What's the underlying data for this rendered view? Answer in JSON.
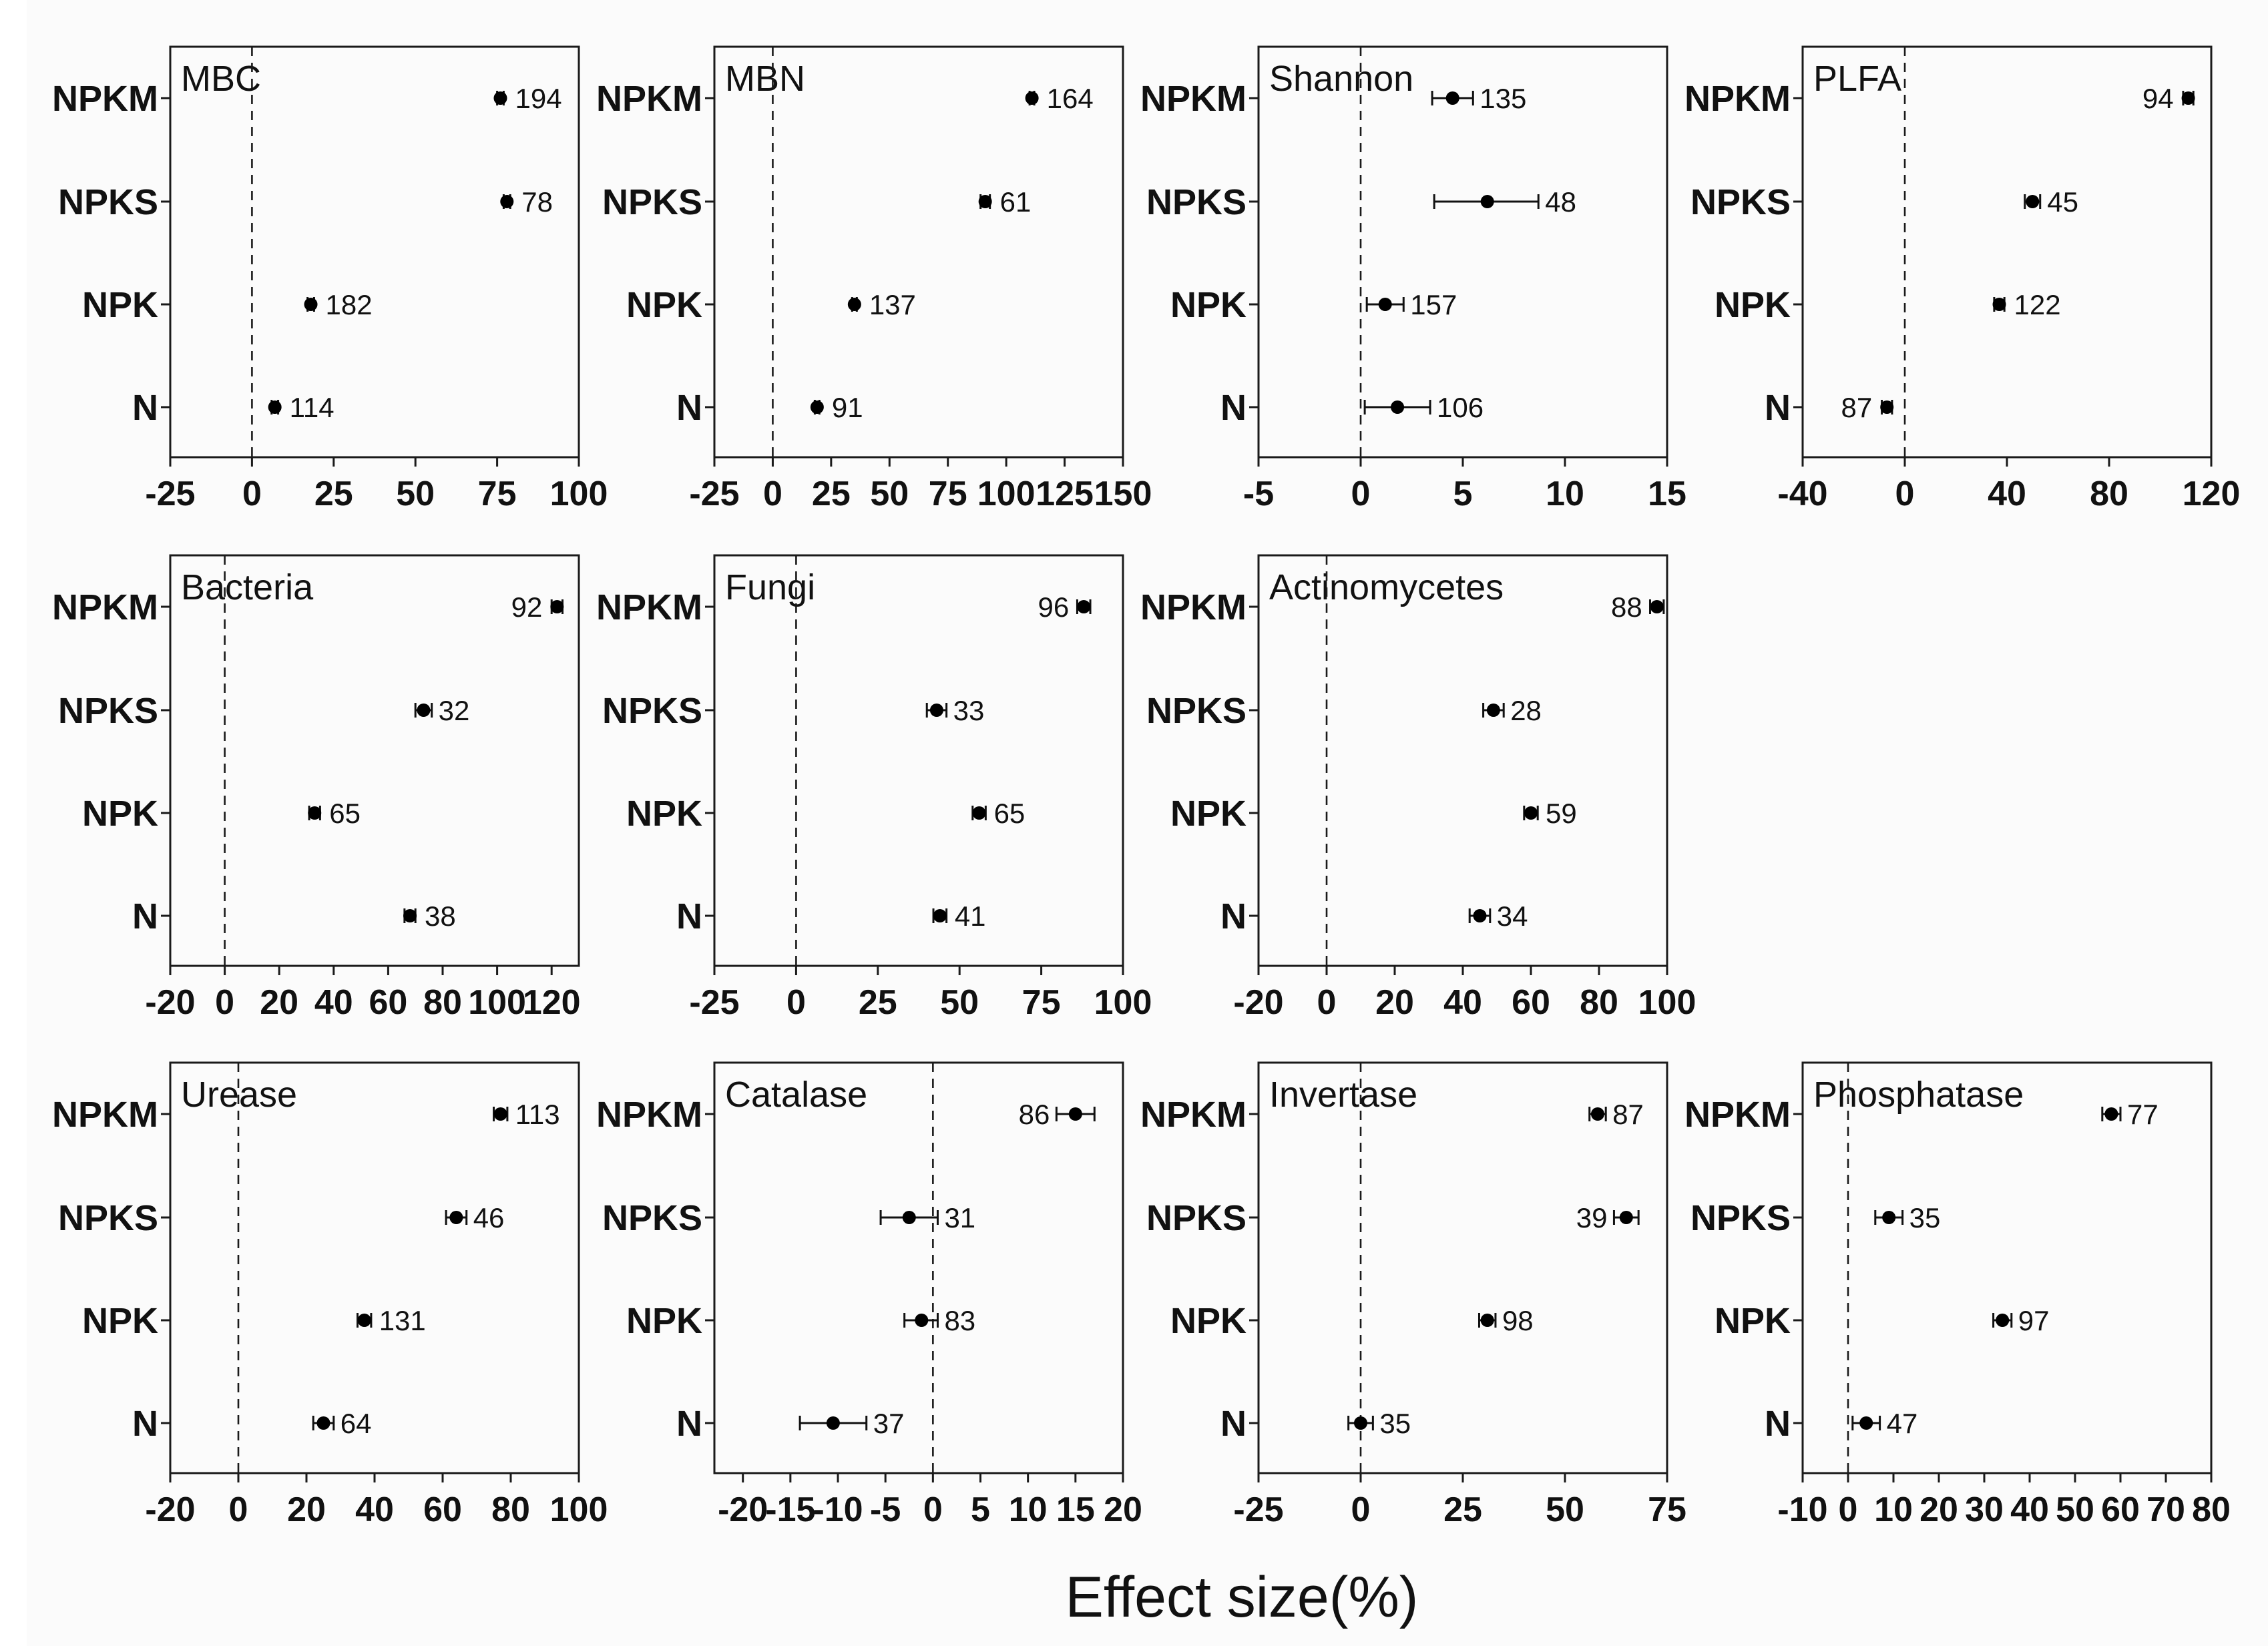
{
  "figure": {
    "xlabel": "Effect size(%)"
  },
  "chart_data": [
    {
      "type": "scatter",
      "title": "MBC",
      "categories": [
        "NPKM",
        "NPKS",
        "NPK",
        "N"
      ],
      "xlim": [
        -25,
        100
      ],
      "xticks": [
        -25,
        0,
        25,
        50,
        75,
        100
      ],
      "points": [
        {
          "category": "NPKM",
          "value": 76,
          "ci": [
            75,
            77
          ],
          "n": "194"
        },
        {
          "category": "NPKS",
          "value": 78,
          "ci": [
            77,
            79
          ],
          "n": "78"
        },
        {
          "category": "NPK",
          "value": 18,
          "ci": [
            17,
            19
          ],
          "n": "182"
        },
        {
          "category": "N",
          "value": 7,
          "ci": [
            6,
            8
          ],
          "n": "114"
        }
      ]
    },
    {
      "type": "scatter",
      "title": "MBN",
      "categories": [
        "NPKM",
        "NPKS",
        "NPK",
        "N"
      ],
      "xlim": [
        -25,
        150
      ],
      "xticks": [
        -25,
        0,
        25,
        50,
        75,
        100,
        125,
        150
      ],
      "points": [
        {
          "category": "NPKM",
          "value": 111,
          "ci": [
            110,
            112
          ],
          "n": "164"
        },
        {
          "category": "NPKS",
          "value": 91,
          "ci": [
            89,
            93
          ],
          "n": "61"
        },
        {
          "category": "NPK",
          "value": 35,
          "ci": [
            34,
            36
          ],
          "n": "137"
        },
        {
          "category": "N",
          "value": 19,
          "ci": [
            18,
            20
          ],
          "n": "91"
        }
      ]
    },
    {
      "type": "scatter",
      "title": "Shannon",
      "categories": [
        "NPKM",
        "NPKS",
        "NPK",
        "N"
      ],
      "xlim": [
        -5,
        15
      ],
      "xticks": [
        -5,
        0,
        5,
        10,
        15
      ],
      "points": [
        {
          "category": "NPKM",
          "value": 4.5,
          "ci": [
            3.5,
            5.5
          ],
          "n": "135"
        },
        {
          "category": "NPKS",
          "value": 6.2,
          "ci": [
            3.6,
            8.7
          ],
          "n": "48"
        },
        {
          "category": "NPK",
          "value": 1.2,
          "ci": [
            0.3,
            2.1
          ],
          "n": "157"
        },
        {
          "category": "N",
          "value": 1.8,
          "ci": [
            0.2,
            3.4
          ],
          "n": "106"
        }
      ]
    },
    {
      "type": "scatter",
      "title": "PLFA",
      "categories": [
        "NPKM",
        "NPKS",
        "NPK",
        "N"
      ],
      "xlim": [
        -40,
        120
      ],
      "xticks": [
        -40,
        0,
        40,
        80,
        120
      ],
      "points": [
        {
          "category": "NPKM",
          "value": 111,
          "ci": [
            109,
            113
          ],
          "n": "94",
          "label_side": "left"
        },
        {
          "category": "NPKS",
          "value": 50,
          "ci": [
            47,
            53
          ],
          "n": "45"
        },
        {
          "category": "NPK",
          "value": 37,
          "ci": [
            35,
            39
          ],
          "n": "122"
        },
        {
          "category": "N",
          "value": -7,
          "ci": [
            -9,
            -5
          ],
          "n": "87",
          "label_side": "left"
        }
      ]
    },
    {
      "type": "scatter",
      "title": "Bacteria",
      "categories": [
        "NPKM",
        "NPKS",
        "NPK",
        "N"
      ],
      "xlim": [
        -20,
        130
      ],
      "xticks": [
        -20,
        0,
        20,
        40,
        60,
        80,
        100,
        120
      ],
      "points": [
        {
          "category": "NPKM",
          "value": 122,
          "ci": [
            120,
            124
          ],
          "n": "92",
          "label_side": "left"
        },
        {
          "category": "NPKS",
          "value": 73,
          "ci": [
            70,
            76
          ],
          "n": "32"
        },
        {
          "category": "NPK",
          "value": 33,
          "ci": [
            31,
            35
          ],
          "n": "65"
        },
        {
          "category": "N",
          "value": 68,
          "ci": [
            66,
            70
          ],
          "n": "38"
        }
      ]
    },
    {
      "type": "scatter",
      "title": "Fungi",
      "categories": [
        "NPKM",
        "NPKS",
        "NPK",
        "N"
      ],
      "xlim": [
        -25,
        100
      ],
      "xticks": [
        -25,
        0,
        25,
        50,
        75,
        100
      ],
      "points": [
        {
          "category": "NPKM",
          "value": 88,
          "ci": [
            86,
            90
          ],
          "n": "96",
          "label_side": "left"
        },
        {
          "category": "NPKS",
          "value": 43,
          "ci": [
            40,
            46
          ],
          "n": "33"
        },
        {
          "category": "NPK",
          "value": 56,
          "ci": [
            54,
            58
          ],
          "n": "65"
        },
        {
          "category": "N",
          "value": 44,
          "ci": [
            42,
            46
          ],
          "n": "41"
        }
      ]
    },
    {
      "type": "scatter",
      "title": "Actinomycetes",
      "categories": [
        "NPKM",
        "NPKS",
        "NPK",
        "N"
      ],
      "xlim": [
        -20,
        100
      ],
      "xticks": [
        -20,
        0,
        20,
        40,
        60,
        80,
        100
      ],
      "points": [
        {
          "category": "NPKM",
          "value": 97,
          "ci": [
            95,
            99
          ],
          "n": "88",
          "label_side": "left"
        },
        {
          "category": "NPKS",
          "value": 49,
          "ci": [
            46,
            52
          ],
          "n": "28"
        },
        {
          "category": "NPK",
          "value": 60,
          "ci": [
            58,
            62
          ],
          "n": "59"
        },
        {
          "category": "N",
          "value": 45,
          "ci": [
            42,
            48
          ],
          "n": "34"
        }
      ]
    },
    {
      "type": "scatter",
      "title": "Urease",
      "categories": [
        "NPKM",
        "NPKS",
        "NPK",
        "N"
      ],
      "xlim": [
        -20,
        100
      ],
      "xticks": [
        -20,
        0,
        20,
        40,
        60,
        80,
        100
      ],
      "points": [
        {
          "category": "NPKM",
          "value": 77,
          "ci": [
            75,
            79
          ],
          "n": "113"
        },
        {
          "category": "NPKS",
          "value": 64,
          "ci": [
            61,
            67
          ],
          "n": "46"
        },
        {
          "category": "NPK",
          "value": 37,
          "ci": [
            35,
            39
          ],
          "n": "131"
        },
        {
          "category": "N",
          "value": 25,
          "ci": [
            22,
            28
          ],
          "n": "64"
        }
      ]
    },
    {
      "type": "scatter",
      "title": "Catalase",
      "categories": [
        "NPKM",
        "NPKS",
        "NPK",
        "N"
      ],
      "xlim": [
        -23,
        20
      ],
      "xticks": [
        -20,
        -15,
        -10,
        -5,
        0,
        5,
        10,
        15,
        20
      ],
      "points": [
        {
          "category": "NPKM",
          "value": 15,
          "ci": [
            13,
            17
          ],
          "n": "86",
          "label_side": "left"
        },
        {
          "category": "NPKS",
          "value": -2.5,
          "ci": [
            -5.5,
            0.5
          ],
          "n": "31"
        },
        {
          "category": "NPK",
          "value": -1.2,
          "ci": [
            -3,
            0.5
          ],
          "n": "83"
        },
        {
          "category": "N",
          "value": -10.5,
          "ci": [
            -14,
            -7
          ],
          "n": "37"
        }
      ]
    },
    {
      "type": "scatter",
      "title": "Invertase",
      "categories": [
        "NPKM",
        "NPKS",
        "NPK",
        "N"
      ],
      "xlim": [
        -25,
        75
      ],
      "xticks": [
        -25,
        0,
        25,
        50,
        75
      ],
      "points": [
        {
          "category": "NPKM",
          "value": 58,
          "ci": [
            56,
            60
          ],
          "n": "87"
        },
        {
          "category": "NPKS",
          "value": 65,
          "ci": [
            62,
            68
          ],
          "n": "39",
          "label_side": "left"
        },
        {
          "category": "NPK",
          "value": 31,
          "ci": [
            29,
            33
          ],
          "n": "98"
        },
        {
          "category": "N",
          "value": 0,
          "ci": [
            -3,
            3
          ],
          "n": "35"
        }
      ]
    },
    {
      "type": "scatter",
      "title": "Phosphatase",
      "categories": [
        "NPKM",
        "NPKS",
        "NPK",
        "N"
      ],
      "xlim": [
        -10,
        80
      ],
      "xticks": [
        -10,
        0,
        10,
        20,
        30,
        40,
        50,
        60,
        70,
        80
      ],
      "points": [
        {
          "category": "NPKM",
          "value": 58,
          "ci": [
            56,
            60
          ],
          "n": "77"
        },
        {
          "category": "NPKS",
          "value": 9,
          "ci": [
            6,
            12
          ],
          "n": "35"
        },
        {
          "category": "NPK",
          "value": 34,
          "ci": [
            32,
            36
          ],
          "n": "97"
        },
        {
          "category": "N",
          "value": 4,
          "ci": [
            1,
            7
          ],
          "n": "47"
        }
      ]
    }
  ]
}
